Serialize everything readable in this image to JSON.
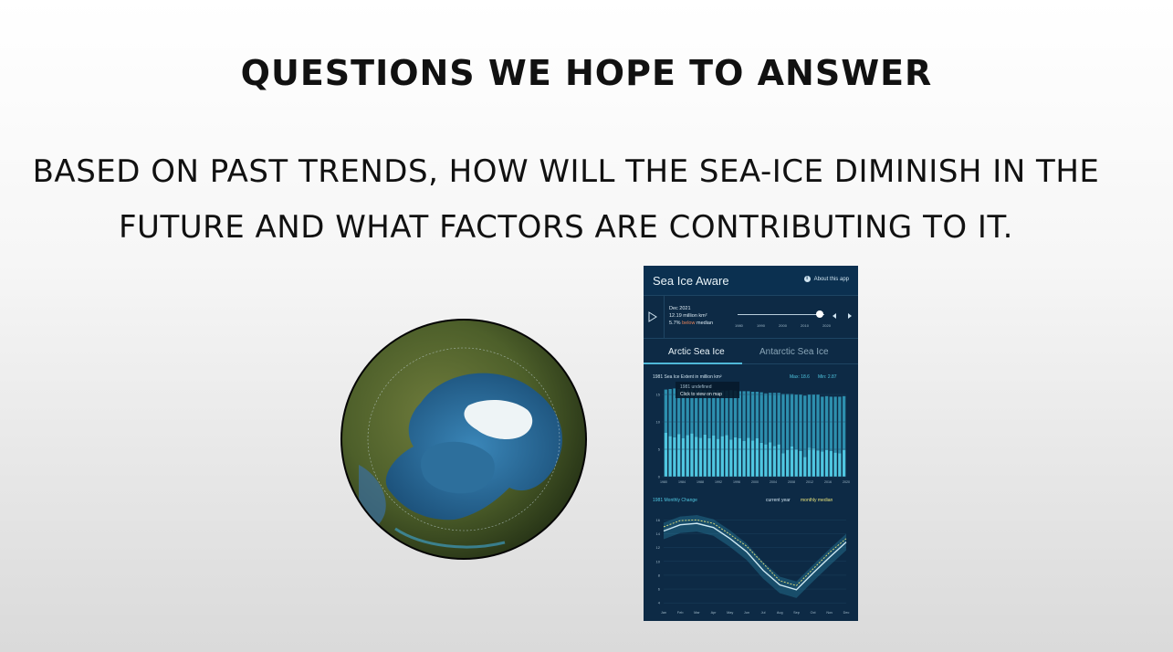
{
  "slide": {
    "title": "QUESTIONS WE HOPE TO ANSWER",
    "question_line1": "BASED ON PAST TRENDS, HOW WILL THE SEA-ICE DIMINISH IN THE",
    "question_line2": "FUTURE AND WHAT FACTORS ARE CONTRIBUTING TO IT."
  },
  "app": {
    "title": "Sea Ice Aware",
    "about": "About this app",
    "readout": {
      "date": "Dec 2021",
      "extent": "12.19 million km²",
      "pct": "5.7%",
      "below": "below",
      "median": "median"
    },
    "slider_years": [
      "1980",
      "1990",
      "2000",
      "2010",
      "2020"
    ],
    "tabs": {
      "arctic": "Arctic Sea Ice",
      "antarctic": "Antarctic Sea Ice"
    },
    "extent_panel": {
      "title": "1981 Sea Ice Extent in million km²",
      "max": "Max: 18.6",
      "min": "Min: 2.87",
      "tooltip_line1": "1981 undefined",
      "tooltip_line2": "Click to view on map"
    },
    "monthly_panel": {
      "title": "1981 Monthly Change",
      "legend_current": "current year",
      "legend_median": "monthly median"
    }
  },
  "colors": {
    "app_bg": "#0d2a45",
    "bar": "#4fc6e0",
    "accent_yellow": "#e4e07a",
    "below": "#e6835a"
  },
  "chart_data": [
    {
      "type": "bar",
      "title": "1981 Sea Ice Extent in million km²",
      "x_ticks": [
        "1980",
        "1984",
        "1988",
        "1992",
        "1996",
        "2000",
        "2004",
        "2008",
        "2012",
        "2016",
        "2020"
      ],
      "y_ticks": [
        "0",
        "5",
        "10",
        "15"
      ],
      "ylim": [
        0,
        17
      ],
      "stacked": true,
      "series": [
        {
          "values": [
            8.0,
            7.4,
            7.2,
            7.8,
            7.0,
            7.6,
            7.9,
            7.3,
            7.1,
            7.7,
            7.0,
            7.5,
            6.9,
            7.4,
            7.6,
            6.8,
            7.2,
            7.0,
            6.5,
            7.1,
            6.6,
            7.0,
            6.2,
            5.9,
            6.3,
            5.6,
            5.9,
            4.3,
            4.9,
            5.5,
            5.0,
            4.7,
            3.6,
            5.3,
            5.2,
            4.8,
            4.6,
            4.9,
            4.7,
            4.4,
            4.3,
            4.9
          ]
        },
        {
          "values": [
            7.9,
            8.6,
            8.9,
            8.2,
            8.9,
            8.3,
            8.1,
            8.6,
            8.8,
            8.1,
            8.8,
            8.3,
            8.9,
            8.3,
            8.1,
            9.0,
            8.5,
            8.6,
            9.1,
            8.5,
            8.9,
            8.5,
            9.2,
            9.3,
            9.0,
            9.7,
            9.4,
            10.8,
            10.2,
            9.6,
            10.0,
            10.3,
            11.2,
            9.7,
            9.8,
            10.2,
            10.0,
            9.8,
            9.9,
            10.2,
            10.3,
            9.8
          ]
        }
      ]
    },
    {
      "type": "line",
      "title": "1981 Monthly Change",
      "categories": [
        "Jan",
        "Feb",
        "Mar",
        "Apr",
        "May",
        "Jun",
        "Jul",
        "Aug",
        "Sep",
        "Oct",
        "Nov",
        "Dec"
      ],
      "y_ticks": [
        "4",
        "6",
        "8",
        "10",
        "12",
        "14",
        "16"
      ],
      "ylim": [
        3.5,
        17.5
      ],
      "series": [
        {
          "name": "current year",
          "values": [
            14.4,
            15.3,
            15.5,
            14.9,
            13.3,
            11.4,
            8.7,
            6.6,
            5.9,
            8.3,
            10.6,
            12.8
          ]
        },
        {
          "name": "monthly median",
          "values": [
            15.0,
            15.9,
            16.0,
            15.5,
            13.9,
            12.2,
            9.7,
            7.2,
            6.5,
            8.9,
            11.3,
            13.3
          ]
        }
      ]
    }
  ]
}
